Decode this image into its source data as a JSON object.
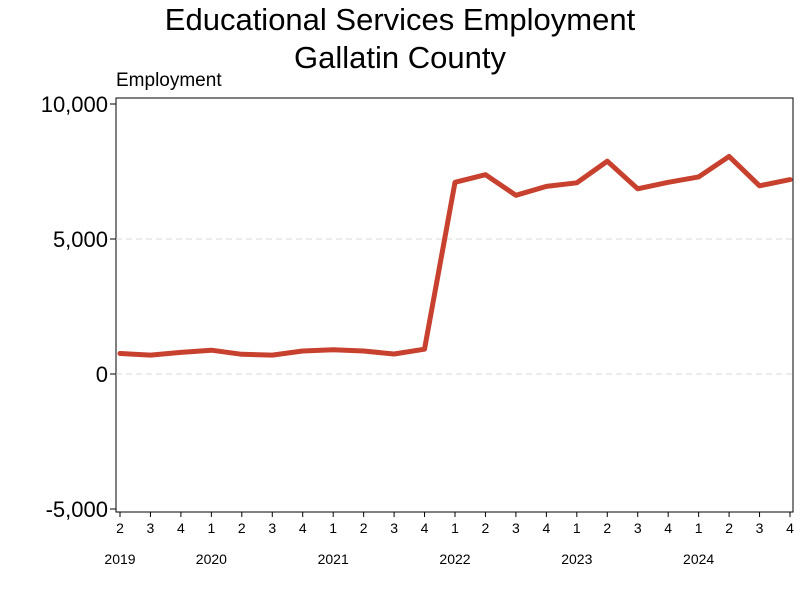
{
  "chart_data": {
    "type": "line",
    "title_lines": [
      "Educational Services Employment",
      "Gallatin County"
    ],
    "ylabel": "Employment",
    "xlabel": "",
    "ylim": [
      -5000,
      10000
    ],
    "y_ticks": [
      10000,
      5000,
      0,
      -5000
    ],
    "y_tick_labels": [
      "10,000",
      "5,000",
      "0",
      "-5,000"
    ],
    "grid": "horizontal dashed",
    "line_color": "#C8412F",
    "x": [
      "2019 Q2",
      "2019 Q3",
      "2019 Q4",
      "2020 Q1",
      "2020 Q2",
      "2020 Q3",
      "2020 Q4",
      "2021 Q1",
      "2021 Q2",
      "2021 Q3",
      "2021 Q4",
      "2022 Q1",
      "2022 Q2",
      "2022 Q3",
      "2022 Q4",
      "2023 Q1",
      "2023 Q2",
      "2023 Q3",
      "2023 Q4",
      "2024 Q1",
      "2024 Q2",
      "2024 Q3",
      "2024 Q4"
    ],
    "x_tick_labels": [
      "2",
      "3",
      "4",
      "1",
      "2",
      "3",
      "4",
      "1",
      "2",
      "3",
      "4",
      "1",
      "2",
      "3",
      "4",
      "1",
      "2",
      "3",
      "4",
      "1",
      "2",
      "3",
      "4"
    ],
    "year_labels": [
      {
        "label": "2019",
        "index": 0
      },
      {
        "label": "2020",
        "index": 3
      },
      {
        "label": "2021",
        "index": 7
      },
      {
        "label": "2022",
        "index": 11
      },
      {
        "label": "2023",
        "index": 15
      },
      {
        "label": "2024",
        "index": 19
      }
    ],
    "series": [
      {
        "values": [
          760,
          700,
          800,
          880,
          730,
          700,
          850,
          900,
          850,
          740,
          920,
          7100,
          7380,
          6620,
          6950,
          7080,
          7880,
          6860,
          7100,
          7300,
          8060,
          6970,
          7200
        ]
      }
    ]
  }
}
